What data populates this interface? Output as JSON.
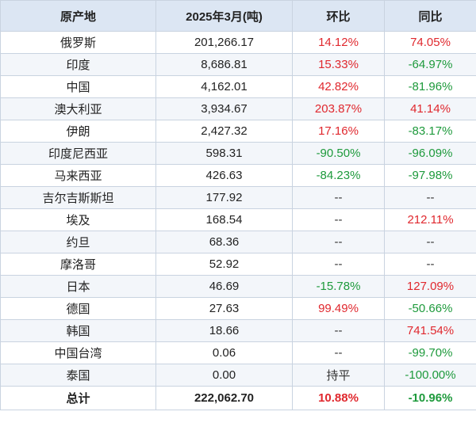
{
  "columns": [
    "原产地",
    "2025年3月(吨)",
    "环比",
    "同比"
  ],
  "colors": {
    "up": "#e0282e",
    "down": "#1e9a3c",
    "header_bg": "#dce6f3",
    "stripe": "#f3f6fa"
  },
  "rows": [
    {
      "origin": "俄罗斯",
      "volume": "201,266.17",
      "mom": "14.12%",
      "mom_dir": "up",
      "yoy": "74.05%",
      "yoy_dir": "up"
    },
    {
      "origin": "印度",
      "volume": "8,686.81",
      "mom": "15.33%",
      "mom_dir": "up",
      "yoy": "-64.97%",
      "yoy_dir": "down"
    },
    {
      "origin": "中国",
      "volume": "4,162.01",
      "mom": "42.82%",
      "mom_dir": "up",
      "yoy": "-81.96%",
      "yoy_dir": "down"
    },
    {
      "origin": "澳大利亚",
      "volume": "3,934.67",
      "mom": "203.87%",
      "mom_dir": "up",
      "yoy": "41.14%",
      "yoy_dir": "up"
    },
    {
      "origin": "伊朗",
      "volume": "2,427.32",
      "mom": "17.16%",
      "mom_dir": "up",
      "yoy": "-83.17%",
      "yoy_dir": "down"
    },
    {
      "origin": "印度尼西亚",
      "volume": "598.31",
      "mom": "-90.50%",
      "mom_dir": "down",
      "yoy": "-96.09%",
      "yoy_dir": "down"
    },
    {
      "origin": "马来西亚",
      "volume": "426.63",
      "mom": "-84.23%",
      "mom_dir": "down",
      "yoy": "-97.98%",
      "yoy_dir": "down"
    },
    {
      "origin": "吉尔吉斯斯坦",
      "volume": "177.92",
      "mom": "--",
      "mom_dir": "flat",
      "yoy": "--",
      "yoy_dir": "flat"
    },
    {
      "origin": "埃及",
      "volume": "168.54",
      "mom": "--",
      "mom_dir": "flat",
      "yoy": "212.11%",
      "yoy_dir": "up"
    },
    {
      "origin": "约旦",
      "volume": "68.36",
      "mom": "--",
      "mom_dir": "flat",
      "yoy": "--",
      "yoy_dir": "flat"
    },
    {
      "origin": "摩洛哥",
      "volume": "52.92",
      "mom": "--",
      "mom_dir": "flat",
      "yoy": "--",
      "yoy_dir": "flat"
    },
    {
      "origin": "日本",
      "volume": "46.69",
      "mom": "-15.78%",
      "mom_dir": "down",
      "yoy": "127.09%",
      "yoy_dir": "up"
    },
    {
      "origin": "德国",
      "volume": "27.63",
      "mom": "99.49%",
      "mom_dir": "up",
      "yoy": "-50.66%",
      "yoy_dir": "down"
    },
    {
      "origin": "韩国",
      "volume": "18.66",
      "mom": "--",
      "mom_dir": "flat",
      "yoy": "741.54%",
      "yoy_dir": "up"
    },
    {
      "origin": "中国台湾",
      "volume": "0.06",
      "mom": "--",
      "mom_dir": "flat",
      "yoy": "-99.70%",
      "yoy_dir": "down"
    },
    {
      "origin": "泰国",
      "volume": "0.00",
      "mom": "持平",
      "mom_dir": "flat",
      "yoy": "-100.00%",
      "yoy_dir": "down"
    }
  ],
  "total": {
    "origin": "总计",
    "volume": "222,062.70",
    "mom": "10.88%",
    "mom_dir": "up",
    "yoy": "-10.96%",
    "yoy_dir": "down"
  }
}
